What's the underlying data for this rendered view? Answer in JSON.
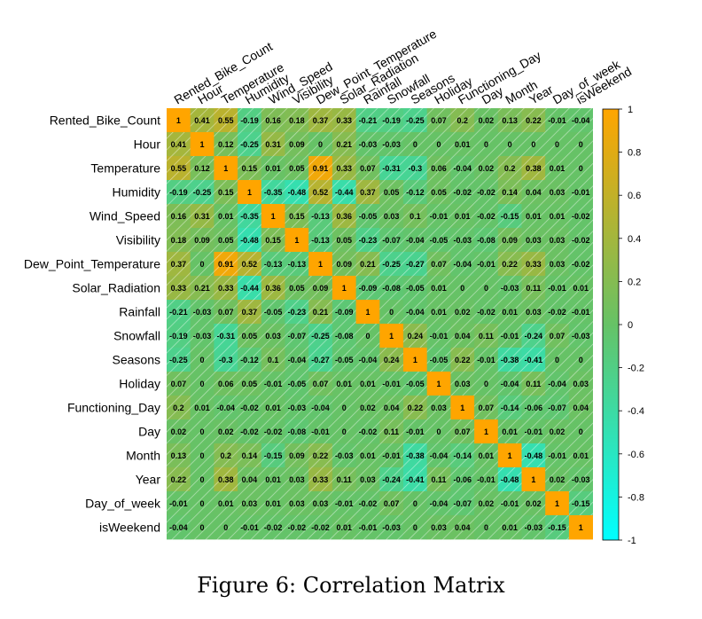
{
  "caption": "Figure 6: Correlation Matrix",
  "chart_data": {
    "type": "heatmap",
    "title": "",
    "variables": [
      "Rented_Bike_Count",
      "Hour",
      "Temperature",
      "Humidity",
      "Wind_Speed",
      "Visibility",
      "Dew_Point_Temperature",
      "Solar_Radiation",
      "Rainfall",
      "Snowfall",
      "Seasons",
      "Holiday",
      "Functioning_Day",
      "Day",
      "Month",
      "Year",
      "Day_of_week",
      "isWeekend"
    ],
    "matrix": [
      [
        "1",
        "0.41",
        "0.55",
        "-0.19",
        "0.16",
        "0.18",
        "0.37",
        "0.33",
        "-0.21",
        "-0.19",
        "-0.25",
        "0.07",
        "0.2",
        "0.02",
        "0.13",
        "0.22",
        "-0.01",
        "-0.04"
      ],
      [
        "0.41",
        "1",
        "0.12",
        "-0.25",
        "0.31",
        "0.09",
        "0",
        "0.21",
        "-0.03",
        "-0.03",
        "0",
        "0",
        "0.01",
        "0",
        "0",
        "0",
        "0",
        "0"
      ],
      [
        "0.55",
        "0.12",
        "1",
        "0.15",
        "0.01",
        "0.05",
        "0.91",
        "0.33",
        "0.07",
        "-0.31",
        "-0.3",
        "0.06",
        "-0.04",
        "0.02",
        "0.2",
        "0.38",
        "0.01",
        "0"
      ],
      [
        "-0.19",
        "-0.25",
        "0.15",
        "1",
        "-0.35",
        "-0.48",
        "0.52",
        "-0.44",
        "0.37",
        "0.05",
        "-0.12",
        "0.05",
        "-0.02",
        "-0.02",
        "0.14",
        "0.04",
        "0.03",
        "-0.01"
      ],
      [
        "0.16",
        "0.31",
        "0.01",
        "-0.35",
        "1",
        "0.15",
        "-0.13",
        "0.36",
        "-0.05",
        "0.03",
        "0.1",
        "-0.01",
        "0.01",
        "-0.02",
        "-0.15",
        "0.01",
        "0.01",
        "-0.02"
      ],
      [
        "0.18",
        "0.09",
        "0.05",
        "-0.48",
        "0.15",
        "1",
        "-0.13",
        "0.05",
        "-0.23",
        "-0.07",
        "-0.04",
        "-0.05",
        "-0.03",
        "-0.08",
        "0.09",
        "0.03",
        "0.03",
        "-0.02"
      ],
      [
        "0.37",
        "0",
        "0.91",
        "0.52",
        "-0.13",
        "-0.13",
        "1",
        "0.09",
        "0.21",
        "-0.25",
        "-0.27",
        "0.07",
        "-0.04",
        "-0.01",
        "0.22",
        "0.33",
        "0.03",
        "-0.02"
      ],
      [
        "0.33",
        "0.21",
        "0.33",
        "-0.44",
        "0.36",
        "0.05",
        "0.09",
        "1",
        "-0.09",
        "-0.08",
        "-0.05",
        "0.01",
        "0",
        "0",
        "-0.03",
        "0.11",
        "-0.01",
        "0.01"
      ],
      [
        "-0.21",
        "-0.03",
        "0.07",
        "0.37",
        "-0.05",
        "-0.23",
        "0.21",
        "-0.09",
        "1",
        "0",
        "-0.04",
        "0.01",
        "0.02",
        "-0.02",
        "0.01",
        "0.03",
        "-0.02",
        "-0.01"
      ],
      [
        "-0.19",
        "-0.03",
        "-0.31",
        "0.05",
        "0.03",
        "-0.07",
        "-0.25",
        "-0.08",
        "0",
        "1",
        "0.24",
        "-0.01",
        "0.04",
        "0.11",
        "-0.01",
        "-0.24",
        "0.07",
        "-0.03"
      ],
      [
        "-0.25",
        "0",
        "-0.3",
        "-0.12",
        "0.1",
        "-0.04",
        "-0.27",
        "-0.05",
        "-0.04",
        "0.24",
        "1",
        "-0.05",
        "0.22",
        "-0.01",
        "-0.38",
        "-0.41",
        "0",
        "0"
      ],
      [
        "0.07",
        "0",
        "0.06",
        "0.05",
        "-0.01",
        "-0.05",
        "0.07",
        "0.01",
        "0.01",
        "-0.01",
        "-0.05",
        "1",
        "0.03",
        "0",
        "-0.04",
        "0.11",
        "-0.04",
        "0.03"
      ],
      [
        "0.2",
        "0.01",
        "-0.04",
        "-0.02",
        "0.01",
        "-0.03",
        "-0.04",
        "0",
        "0.02",
        "0.04",
        "0.22",
        "0.03",
        "1",
        "0.07",
        "-0.14",
        "-0.06",
        "-0.07",
        "0.04"
      ],
      [
        "0.02",
        "0",
        "0.02",
        "-0.02",
        "-0.02",
        "-0.08",
        "-0.01",
        "0",
        "-0.02",
        "0.11",
        "-0.01",
        "0",
        "0.07",
        "1",
        "0.01",
        "-0.01",
        "0.02",
        "0"
      ],
      [
        "0.13",
        "0",
        "0.2",
        "0.14",
        "-0.15",
        "0.09",
        "0.22",
        "-0.03",
        "0.01",
        "-0.01",
        "-0.38",
        "-0.04",
        "-0.14",
        "0.01",
        "1",
        "-0.48",
        "-0.01",
        "0.01"
      ],
      [
        "0.22",
        "0",
        "0.38",
        "0.04",
        "0.01",
        "0.03",
        "0.33",
        "0.11",
        "0.03",
        "-0.24",
        "-0.41",
        "0.11",
        "-0.06",
        "-0.01",
        "-0.48",
        "1",
        "0.02",
        "-0.03"
      ],
      [
        "-0.01",
        "0",
        "0.01",
        "0.03",
        "0.01",
        "0.03",
        "0.03",
        "-0.01",
        "-0.02",
        "0.07",
        "0",
        "-0.04",
        "-0.07",
        "0.02",
        "-0.01",
        "0.02",
        "1",
        "-0.15"
      ],
      [
        "-0.04",
        "0",
        "0",
        "-0.01",
        "-0.02",
        "-0.02",
        "-0.02",
        "0.01",
        "-0.01",
        "-0.03",
        "0",
        "0.03",
        "0.04",
        "0",
        "0.01",
        "-0.03",
        "-0.15",
        "1"
      ]
    ],
    "color_scale": {
      "range": [
        -1,
        1
      ],
      "ticks": [
        "1",
        "0.8",
        "0.6",
        "0.4",
        "0.2",
        "0",
        "-0.2",
        "-0.4",
        "-0.6",
        "-0.8",
        "-1"
      ],
      "colors": {
        "neg": "#00ffff",
        "mid": "#66c266",
        "pos": "#ffa500"
      }
    },
    "hatch_color": "#ffffff",
    "legend_position": "right"
  }
}
